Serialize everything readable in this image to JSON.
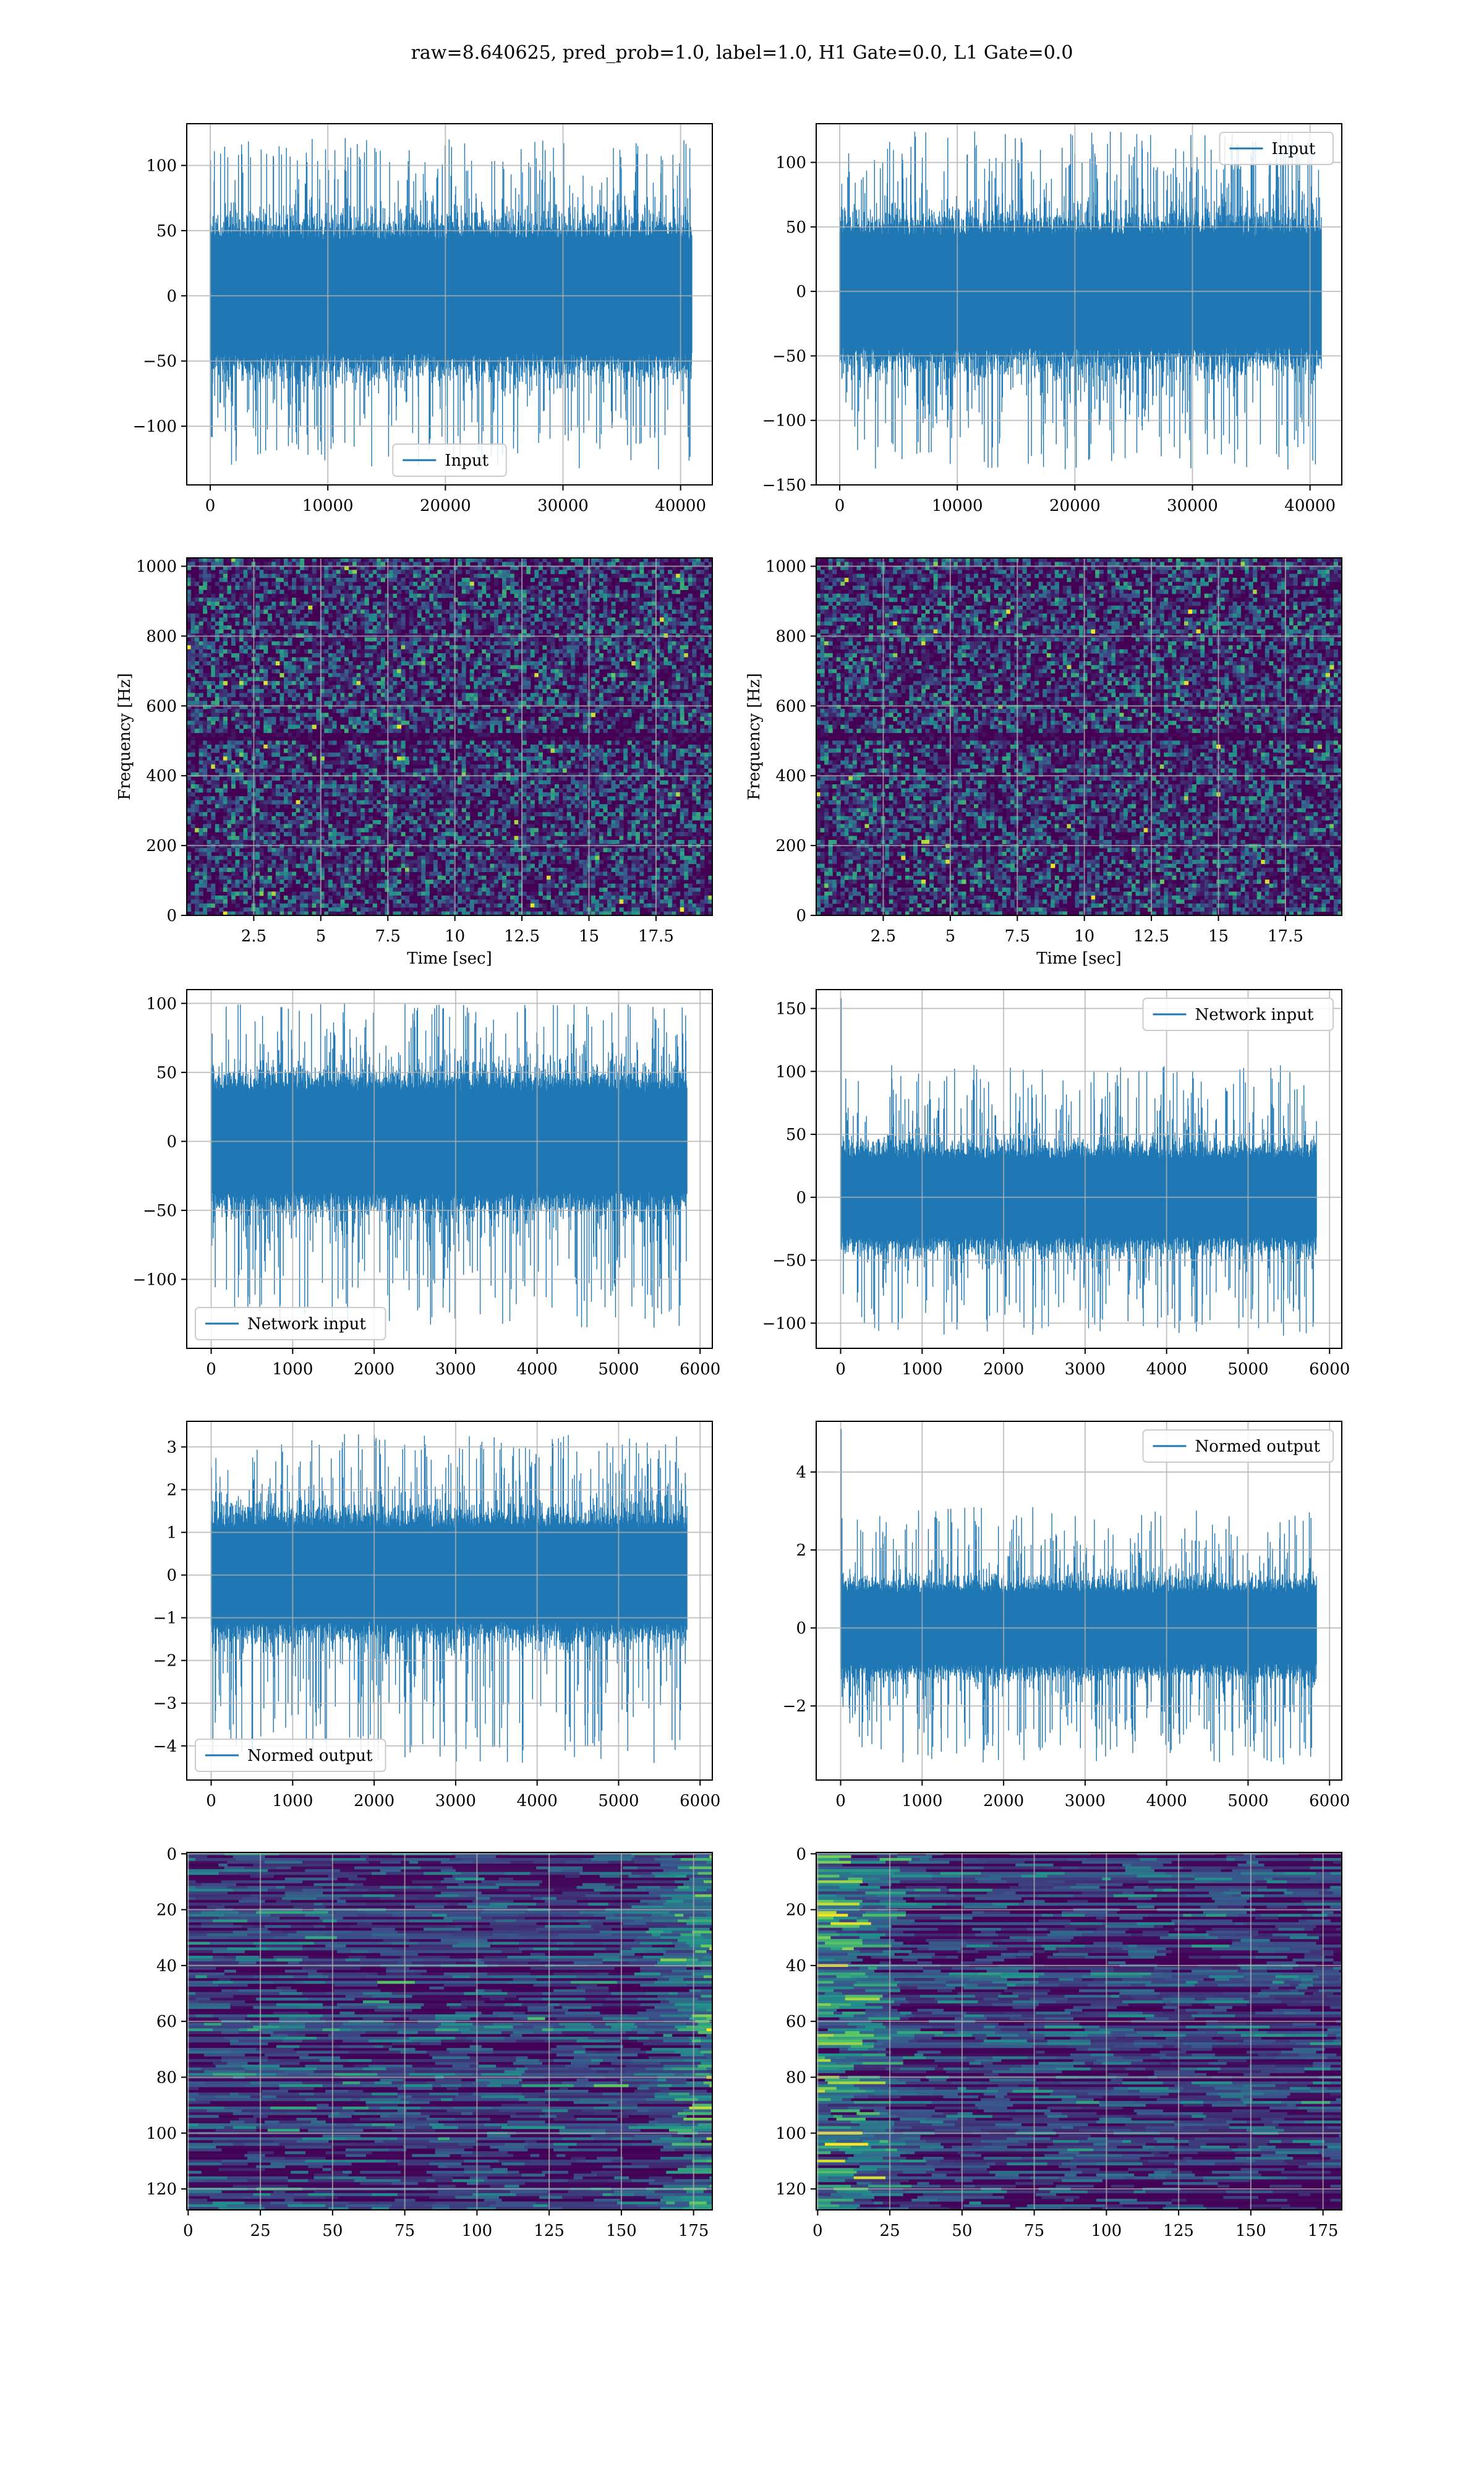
{
  "figure": {
    "suptitle": "raw=8.640625, pred_prob=1.0, label=1.0, H1 Gate=0.0, L1 Gate=0.0"
  },
  "colors": {
    "line": "#1f77b4",
    "grid": "#b0b0b0",
    "viridis_low": "#440154",
    "viridis_mid": "#21918c",
    "viridis_high": "#fde725"
  },
  "chart_data": [
    {
      "id": "r1c1",
      "type": "line",
      "series": [
        {
          "name": "Input",
          "color": "#1f77b4"
        }
      ],
      "xlim": [
        -2000,
        42700
      ],
      "ylim": [
        -145,
        132
      ],
      "xticks": [
        0,
        10000,
        20000,
        30000,
        40000
      ],
      "yticks": [
        -100,
        -50,
        0,
        50,
        100
      ],
      "signal": {
        "n": 40960,
        "core_amplitude": 45,
        "peak_max": 121,
        "peak_min": -133,
        "spike": null
      },
      "legend": "lower center",
      "xlabel": "",
      "ylabel": "",
      "grid": true
    },
    {
      "id": "r1c2",
      "type": "line",
      "series": [
        {
          "name": "Input",
          "color": "#1f77b4"
        }
      ],
      "xlim": [
        -2000,
        42700
      ],
      "ylim": [
        -150,
        130
      ],
      "xticks": [
        0,
        10000,
        20000,
        30000,
        40000
      ],
      "yticks": [
        -150,
        -100,
        -50,
        0,
        50,
        100
      ],
      "signal": {
        "n": 40960,
        "core_amplitude": 45,
        "peak_max": 124,
        "peak_min": -138,
        "spike": null
      },
      "legend": "upper right",
      "xlabel": "",
      "ylabel": "",
      "grid": true
    },
    {
      "id": "r2c1",
      "type": "heatmap",
      "series": [],
      "xlim": [
        0,
        19.6
      ],
      "ylim": [
        0,
        1024
      ],
      "xticks": [
        2.5,
        5.0,
        7.5,
        10.0,
        12.5,
        15.0,
        17.5
      ],
      "yticks": [
        0,
        200,
        400,
        600,
        800,
        1000
      ],
      "heat": {
        "style": "spectrogram",
        "dark_band": [
          495,
          520
        ]
      },
      "xlabel": "Time [sec]",
      "ylabel": "Frequency [Hz]",
      "grid": true
    },
    {
      "id": "r2c2",
      "type": "heatmap",
      "series": [],
      "xlim": [
        0,
        19.6
      ],
      "ylim": [
        0,
        1024
      ],
      "xticks": [
        2.5,
        5.0,
        7.5,
        10.0,
        12.5,
        15.0,
        17.5
      ],
      "yticks": [
        0,
        200,
        400,
        600,
        800,
        1000
      ],
      "heat": {
        "style": "spectrogram",
        "dark_band": [
          495,
          520
        ]
      },
      "xlabel": "Time [sec]",
      "ylabel": "Frequency [Hz]",
      "grid": true
    },
    {
      "id": "r3c1",
      "type": "line",
      "series": [
        {
          "name": "Network input",
          "color": "#1f77b4"
        }
      ],
      "xlim": [
        -300,
        6150
      ],
      "ylim": [
        -150,
        110
      ],
      "xticks": [
        0,
        1000,
        2000,
        3000,
        4000,
        5000,
        6000
      ],
      "yticks": [
        -100,
        -50,
        0,
        50,
        100
      ],
      "signal": {
        "n": 5840,
        "core_amplitude": 38,
        "peak_max": 100,
        "peak_min": -135,
        "spike": null
      },
      "legend": "lower left",
      "xlabel": "",
      "ylabel": "",
      "grid": true
    },
    {
      "id": "r3c2",
      "type": "line",
      "series": [
        {
          "name": "Network input",
          "color": "#1f77b4"
        }
      ],
      "xlim": [
        -300,
        6150
      ],
      "ylim": [
        -120,
        165
      ],
      "xticks": [
        0,
        1000,
        2000,
        3000,
        4000,
        5000,
        6000
      ],
      "yticks": [
        -100,
        -50,
        0,
        50,
        100,
        150
      ],
      "signal": {
        "n": 5840,
        "core_amplitude": 32,
        "peak_max": 105,
        "peak_min": -110,
        "spike": [
          5,
          158
        ]
      },
      "legend": "upper right",
      "xlabel": "",
      "ylabel": "",
      "grid": true
    },
    {
      "id": "r4c1",
      "type": "line",
      "series": [
        {
          "name": "Normed output",
          "color": "#1f77b4"
        }
      ],
      "xlim": [
        -300,
        6150
      ],
      "ylim": [
        -4.8,
        3.6
      ],
      "xticks": [
        0,
        1000,
        2000,
        3000,
        4000,
        5000,
        6000
      ],
      "yticks": [
        -4,
        -3,
        -2,
        -1,
        0,
        1,
        2,
        3
      ],
      "signal": {
        "n": 5840,
        "core_amplitude": 1.15,
        "peak_max": 3.3,
        "peak_min": -4.4,
        "spike": null
      },
      "legend": "lower left",
      "xlabel": "",
      "ylabel": "",
      "grid": true
    },
    {
      "id": "r4c2",
      "type": "line",
      "series": [
        {
          "name": "Normed output",
          "color": "#1f77b4"
        }
      ],
      "xlim": [
        -300,
        6150
      ],
      "ylim": [
        -3.9,
        5.3
      ],
      "xticks": [
        0,
        1000,
        2000,
        3000,
        4000,
        5000,
        6000
      ],
      "yticks": [
        -2,
        0,
        2,
        4
      ],
      "signal": {
        "n": 5840,
        "core_amplitude": 0.95,
        "peak_max": 3.1,
        "peak_min": -3.5,
        "spike": [
          5,
          5.1
        ]
      },
      "legend": "upper right",
      "xlabel": "",
      "ylabel": "",
      "grid": true
    },
    {
      "id": "r5c1",
      "type": "heatmap",
      "series": [],
      "xlim": [
        -0.5,
        181.5
      ],
      "ylim": [
        127.5,
        -0.5
      ],
      "xticks": [
        0,
        25,
        50,
        75,
        100,
        125,
        150,
        175
      ],
      "yticks": [
        0,
        20,
        40,
        60,
        80,
        100,
        120
      ],
      "heat": {
        "style": "features",
        "bright_side": "right",
        "yinverted": true
      },
      "xlabel": "",
      "ylabel": "",
      "grid": true
    },
    {
      "id": "r5c2",
      "type": "heatmap",
      "series": [],
      "xlim": [
        -0.5,
        181.5
      ],
      "ylim": [
        127.5,
        -0.5
      ],
      "xticks": [
        0,
        25,
        50,
        75,
        100,
        125,
        150,
        175
      ],
      "yticks": [
        0,
        20,
        40,
        60,
        80,
        100,
        120
      ],
      "heat": {
        "style": "features",
        "bright_side": "left",
        "yinverted": true
      },
      "xlabel": "",
      "ylabel": "",
      "grid": true
    }
  ]
}
